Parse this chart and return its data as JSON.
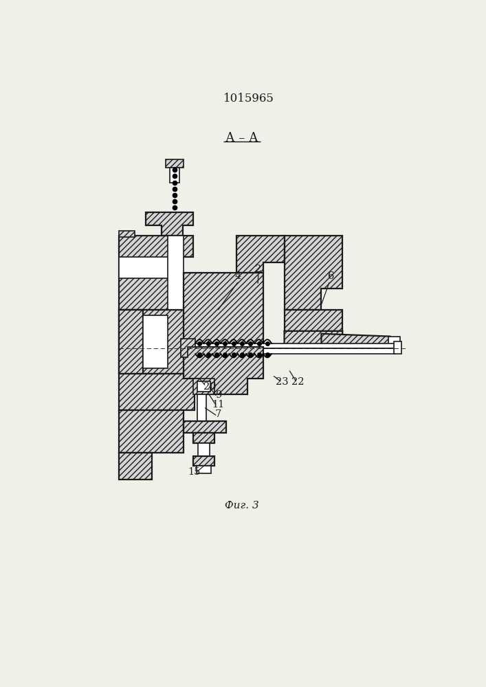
{
  "title": "1015965",
  "section_label": "А – А",
  "fig_label": "Фиг. 3",
  "bg": "#f0efe8",
  "lc": "#1a1a1a",
  "hc": "#d4d4d4",
  "lw": 1.2,
  "lw2": 1.6
}
